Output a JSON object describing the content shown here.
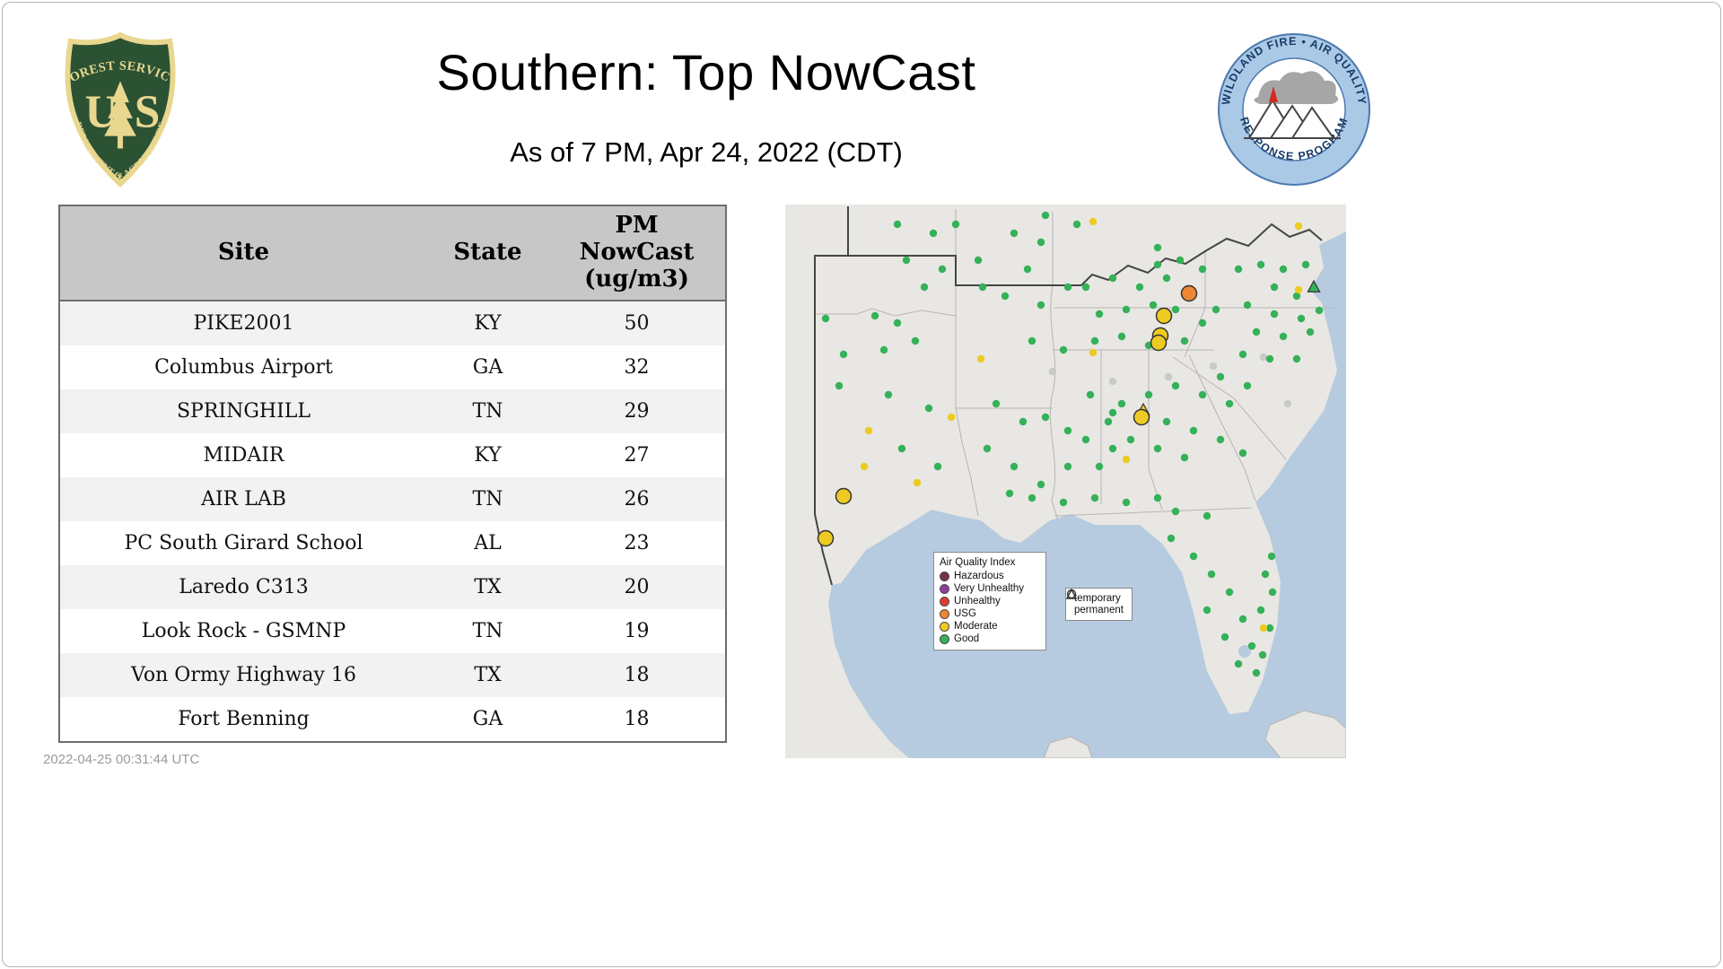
{
  "header": {
    "title": "Southern: Top NowCast",
    "subtitle": "As of  7 PM, Apr 24, 2022 (CDT)"
  },
  "footer": {
    "generated": "2022-04-25 00:31:44 UTC"
  },
  "logos": {
    "forest_service": {
      "arc_top": "FOREST SERVICE",
      "letter_left": "U",
      "letter_right": "S",
      "arc_bottom": "DEPARTMENT OF AGRICULTURE"
    },
    "wfaqrp": {
      "arc_top": "WILDLAND FIRE • AIR QUALITY",
      "arc_bottom": "RESPONSE PROGRAM"
    }
  },
  "table": {
    "header": {
      "site": "Site",
      "state": "State",
      "value_lines": [
        "PM",
        "NowCast",
        "(ug/m3)"
      ]
    },
    "rows": [
      {
        "site": "PIKE2001",
        "state": "KY",
        "value": "50"
      },
      {
        "site": "Columbus Airport",
        "state": "GA",
        "value": "32"
      },
      {
        "site": "SPRINGHILL",
        "state": "TN",
        "value": "29"
      },
      {
        "site": "MIDAIR",
        "state": "KY",
        "value": "27"
      },
      {
        "site": "AIR LAB",
        "state": "TN",
        "value": "26"
      },
      {
        "site": "PC South Girard School",
        "state": "AL",
        "value": "23"
      },
      {
        "site": "Laredo C313",
        "state": "TX",
        "value": "20"
      },
      {
        "site": "Look Rock - GSMNP",
        "state": "TN",
        "value": "19"
      },
      {
        "site": "Von Ormy Highway 16",
        "state": "TX",
        "value": "18"
      },
      {
        "site": "Fort Benning",
        "state": "GA",
        "value": "18"
      }
    ]
  },
  "map": {
    "colors": {
      "good": "#35b159",
      "moderate": "#eecb23",
      "usg": "#ee8733",
      "unhealthy": "#e03c31",
      "very_unhealthy": "#8f3f97",
      "hazardous": "#7d3045",
      "inactive": "#c9c9c9",
      "water": "#b6cbdf",
      "land": "#e9e7e3"
    },
    "legend": {
      "title": "Air Quality Index",
      "items": [
        {
          "label": "Hazardous",
          "level": "hazardous",
          "color": "#7d3045"
        },
        {
          "label": "Very Unhealthy",
          "level": "very_unhealthy",
          "color": "#8f3f97"
        },
        {
          "label": "Unhealthy",
          "level": "unhealthy",
          "color": "#e03c31"
        },
        {
          "label": "USG",
          "level": "usg",
          "color": "#ee8733"
        },
        {
          "label": "Moderate",
          "level": "moderate",
          "color": "#eecb23"
        },
        {
          "label": "Good",
          "level": "good",
          "color": "#35b159"
        }
      ]
    },
    "marker_legend": {
      "temporary": "temporary",
      "permanent": "permanent"
    },
    "marker_format": [
      "x",
      "y",
      "level",
      "size s|l",
      "shape c|t"
    ],
    "markers": [
      [
        365,
        197,
        "inactive",
        "s",
        "c"
      ],
      [
        427,
        192,
        "inactive",
        "s",
        "c"
      ],
      [
        477,
        180,
        "inactive",
        "s",
        "c"
      ],
      [
        560,
        222,
        "inactive",
        "s",
        "c"
      ],
      [
        533,
        170,
        "inactive",
        "s",
        "c"
      ],
      [
        298,
        186,
        "inactive",
        "s",
        "c"
      ],
      [
        45,
        127,
        "good",
        "s",
        "c"
      ],
      [
        100,
        124,
        "good",
        "s",
        "c"
      ],
      [
        125,
        132,
        "good",
        "s",
        "c"
      ],
      [
        65,
        167,
        "good",
        "s",
        "c"
      ],
      [
        110,
        162,
        "good",
        "s",
        "c"
      ],
      [
        145,
        152,
        "good",
        "s",
        "c"
      ],
      [
        60,
        202,
        "good",
        "s",
        "c"
      ],
      [
        115,
        212,
        "good",
        "s",
        "c"
      ],
      [
        160,
        227,
        "good",
        "s",
        "c"
      ],
      [
        130,
        272,
        "good",
        "s",
        "c"
      ],
      [
        170,
        292,
        "good",
        "s",
        "c"
      ],
      [
        125,
        22,
        "good",
        "s",
        "c"
      ],
      [
        165,
        32,
        "good",
        "s",
        "c"
      ],
      [
        190,
        22,
        "good",
        "s",
        "c"
      ],
      [
        135,
        62,
        "good",
        "s",
        "c"
      ],
      [
        175,
        72,
        "good",
        "s",
        "c"
      ],
      [
        215,
        62,
        "good",
        "s",
        "c"
      ],
      [
        155,
        92,
        "good",
        "s",
        "c"
      ],
      [
        220,
        92,
        "good",
        "s",
        "c"
      ],
      [
        255,
        32,
        "good",
        "s",
        "c"
      ],
      [
        285,
        42,
        "good",
        "s",
        "c"
      ],
      [
        270,
        72,
        "good",
        "s",
        "c"
      ],
      [
        245,
        102,
        "good",
        "s",
        "c"
      ],
      [
        285,
        112,
        "good",
        "s",
        "c"
      ],
      [
        315,
        92,
        "good",
        "s",
        "c"
      ],
      [
        275,
        152,
        "good",
        "s",
        "c"
      ],
      [
        310,
        162,
        "good",
        "s",
        "c"
      ],
      [
        290,
        12,
        "good",
        "s",
        "c"
      ],
      [
        325,
        22,
        "good",
        "s",
        "c"
      ],
      [
        235,
        222,
        "good",
        "s",
        "c"
      ],
      [
        265,
        242,
        "good",
        "s",
        "c"
      ],
      [
        225,
        272,
        "good",
        "s",
        "c"
      ],
      [
        255,
        292,
        "good",
        "s",
        "c"
      ],
      [
        285,
        312,
        "good",
        "s",
        "c"
      ],
      [
        315,
        292,
        "good",
        "s",
        "c"
      ],
      [
        290,
        237,
        "good",
        "s",
        "c"
      ],
      [
        315,
        252,
        "good",
        "s",
        "c"
      ],
      [
        250,
        322,
        "good",
        "s",
        "c"
      ],
      [
        335,
        92,
        "good",
        "s",
        "c"
      ],
      [
        365,
        82,
        "good",
        "s",
        "c"
      ],
      [
        395,
        92,
        "good",
        "s",
        "c"
      ],
      [
        425,
        82,
        "good",
        "s",
        "c"
      ],
      [
        350,
        122,
        "good",
        "s",
        "c"
      ],
      [
        380,
        117,
        "good",
        "s",
        "c"
      ],
      [
        410,
        112,
        "good",
        "s",
        "c"
      ],
      [
        435,
        117,
        "good",
        "s",
        "c"
      ],
      [
        345,
        152,
        "good",
        "s",
        "c"
      ],
      [
        375,
        147,
        "good",
        "s",
        "c"
      ],
      [
        405,
        157,
        "good",
        "s",
        "c"
      ],
      [
        445,
        152,
        "good",
        "s",
        "c"
      ],
      [
        465,
        132,
        "good",
        "s",
        "c"
      ],
      [
        480,
        117,
        "good",
        "s",
        "c"
      ],
      [
        415,
        67,
        "good",
        "s",
        "c"
      ],
      [
        440,
        62,
        "good",
        "s",
        "c"
      ],
      [
        465,
        72,
        "good",
        "s",
        "c"
      ],
      [
        415,
        48,
        "good",
        "s",
        "c"
      ],
      [
        505,
        72,
        "good",
        "s",
        "c"
      ],
      [
        530,
        67,
        "good",
        "s",
        "c"
      ],
      [
        555,
        72,
        "good",
        "s",
        "c"
      ],
      [
        580,
        67,
        "good",
        "s",
        "c"
      ],
      [
        545,
        92,
        "good",
        "s",
        "c"
      ],
      [
        570,
        102,
        "good",
        "s",
        "c"
      ],
      [
        515,
        112,
        "good",
        "s",
        "c"
      ],
      [
        545,
        122,
        "good",
        "s",
        "c"
      ],
      [
        575,
        127,
        "good",
        "s",
        "c"
      ],
      [
        525,
        142,
        "good",
        "s",
        "c"
      ],
      [
        555,
        147,
        "good",
        "s",
        "c"
      ],
      [
        585,
        142,
        "good",
        "s",
        "c"
      ],
      [
        510,
        167,
        "good",
        "s",
        "c"
      ],
      [
        540,
        172,
        "good",
        "s",
        "c"
      ],
      [
        570,
        172,
        "good",
        "s",
        "c"
      ],
      [
        595,
        118,
        "good",
        "s",
        "c"
      ],
      [
        485,
        192,
        "good",
        "s",
        "c"
      ],
      [
        515,
        202,
        "good",
        "s",
        "c"
      ],
      [
        465,
        212,
        "good",
        "s",
        "c"
      ],
      [
        495,
        222,
        "good",
        "s",
        "c"
      ],
      [
        435,
        202,
        "good",
        "s",
        "c"
      ],
      [
        405,
        212,
        "good",
        "s",
        "c"
      ],
      [
        375,
        222,
        "good",
        "s",
        "c"
      ],
      [
        425,
        242,
        "good",
        "s",
        "c"
      ],
      [
        455,
        252,
        "good",
        "s",
        "c"
      ],
      [
        485,
        262,
        "good",
        "s",
        "c"
      ],
      [
        385,
        262,
        "good",
        "s",
        "c"
      ],
      [
        415,
        272,
        "good",
        "s",
        "c"
      ],
      [
        445,
        282,
        "good",
        "s",
        "c"
      ],
      [
        365,
        232,
        "good",
        "s",
        "c"
      ],
      [
        510,
        277,
        "good",
        "s",
        "c"
      ],
      [
        340,
        212,
        "good",
        "s",
        "c"
      ],
      [
        360,
        242,
        "good",
        "s",
        "c"
      ],
      [
        335,
        262,
        "good",
        "s",
        "c"
      ],
      [
        365,
        272,
        "good",
        "s",
        "c"
      ],
      [
        350,
        292,
        "good",
        "s",
        "c"
      ],
      [
        275,
        327,
        "good",
        "s",
        "c"
      ],
      [
        310,
        332,
        "good",
        "s",
        "c"
      ],
      [
        345,
        327,
        "good",
        "s",
        "c"
      ],
      [
        380,
        332,
        "good",
        "s",
        "c"
      ],
      [
        415,
        327,
        "good",
        "s",
        "c"
      ],
      [
        435,
        342,
        "good",
        "s",
        "c"
      ],
      [
        470,
        347,
        "good",
        "s",
        "c"
      ],
      [
        430,
        372,
        "good",
        "s",
        "c"
      ],
      [
        455,
        392,
        "good",
        "s",
        "c"
      ],
      [
        475,
        412,
        "good",
        "s",
        "c"
      ],
      [
        495,
        432,
        "good",
        "s",
        "c"
      ],
      [
        470,
        452,
        "good",
        "s",
        "c"
      ],
      [
        510,
        462,
        "good",
        "s",
        "c"
      ],
      [
        490,
        482,
        "good",
        "s",
        "c"
      ],
      [
        520,
        492,
        "good",
        "s",
        "c"
      ],
      [
        505,
        512,
        "good",
        "s",
        "c"
      ],
      [
        525,
        522,
        "good",
        "s",
        "c"
      ],
      [
        532,
        502,
        "good",
        "s",
        "c"
      ],
      [
        540,
        472,
        "good",
        "s",
        "c"
      ],
      [
        530,
        452,
        "good",
        "s",
        "c"
      ],
      [
        543,
        432,
        "good",
        "s",
        "c"
      ],
      [
        535,
        412,
        "good",
        "s",
        "c"
      ],
      [
        542,
        392,
        "good",
        "s",
        "c"
      ],
      [
        88,
        292,
        "moderate",
        "s",
        "c"
      ],
      [
        147,
        310,
        "moderate",
        "s",
        "c"
      ],
      [
        218,
        172,
        "moderate",
        "s",
        "c"
      ],
      [
        185,
        237,
        "moderate",
        "s",
        "c"
      ],
      [
        343,
        165,
        "moderate",
        "s",
        "c"
      ],
      [
        380,
        284,
        "moderate",
        "s",
        "c"
      ],
      [
        572,
        95,
        "moderate",
        "s",
        "c"
      ],
      [
        533,
        472,
        "moderate",
        "s",
        "c"
      ],
      [
        343,
        19,
        "moderate",
        "s",
        "c"
      ],
      [
        93,
        252,
        "moderate",
        "s",
        "c"
      ],
      [
        572,
        24,
        "moderate",
        "s",
        "c"
      ],
      [
        589,
        92,
        "good",
        "s",
        "t"
      ],
      [
        422,
        124,
        "moderate",
        "l",
        "c"
      ],
      [
        418,
        146,
        "moderate",
        "l",
        "c"
      ],
      [
        416,
        154,
        "moderate",
        "l",
        "c"
      ],
      [
        65,
        325,
        "moderate",
        "l",
        "c"
      ],
      [
        45,
        372,
        "moderate",
        "l",
        "c"
      ],
      [
        399,
        229,
        "moderate",
        "s",
        "t"
      ],
      [
        397,
        237,
        "moderate",
        "l",
        "c"
      ],
      [
        450,
        99,
        "usg",
        "l",
        "c"
      ]
    ]
  }
}
